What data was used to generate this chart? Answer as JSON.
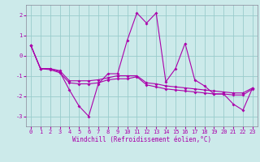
{
  "xlabel": "Windchill (Refroidissement éolien,°C)",
  "bg_color": "#cceaea",
  "line_color": "#aa00aa",
  "grid_color": "#99cccc",
  "x_data": [
    0,
    1,
    2,
    3,
    4,
    5,
    6,
    7,
    8,
    9,
    10,
    11,
    12,
    13,
    14,
    15,
    16,
    17,
    18,
    19,
    20,
    21,
    22,
    23
  ],
  "y_main": [
    0.5,
    -0.65,
    -0.65,
    -0.8,
    -1.7,
    -2.5,
    -3.0,
    -1.4,
    -0.9,
    -0.9,
    0.75,
    2.1,
    1.6,
    2.1,
    -1.3,
    -0.65,
    0.6,
    -1.2,
    -1.5,
    -1.9,
    -1.9,
    -2.4,
    -2.7,
    -1.6
  ],
  "y_upper": [
    0.5,
    -0.65,
    -0.65,
    -0.75,
    -1.25,
    -1.25,
    -1.25,
    -1.2,
    -1.1,
    -1.0,
    -1.0,
    -1.0,
    -1.35,
    -1.4,
    -1.5,
    -1.55,
    -1.6,
    -1.65,
    -1.7,
    -1.75,
    -1.8,
    -1.85,
    -1.85,
    -1.6
  ],
  "y_lower": [
    0.5,
    -0.65,
    -0.7,
    -0.85,
    -1.35,
    -1.4,
    -1.4,
    -1.35,
    -1.2,
    -1.15,
    -1.15,
    -1.05,
    -1.45,
    -1.55,
    -1.65,
    -1.7,
    -1.75,
    -1.8,
    -1.85,
    -1.9,
    -1.9,
    -1.95,
    -1.95,
    -1.65
  ],
  "ylim": [
    -3.5,
    2.5
  ],
  "xlim": [
    -0.5,
    23.5
  ],
  "yticks": [
    -3,
    -2,
    -1,
    0,
    1,
    2
  ],
  "xticks": [
    0,
    1,
    2,
    3,
    4,
    5,
    6,
    7,
    8,
    9,
    10,
    11,
    12,
    13,
    14,
    15,
    16,
    17,
    18,
    19,
    20,
    21,
    22,
    23
  ],
  "xtick_labels": [
    "0",
    "1",
    "2",
    "3",
    "4",
    "5",
    "6",
    "7",
    "8",
    "9",
    "10",
    "11",
    "12",
    "13",
    "14",
    "15",
    "16",
    "17",
    "18",
    "19",
    "20",
    "21",
    "22",
    "23"
  ]
}
